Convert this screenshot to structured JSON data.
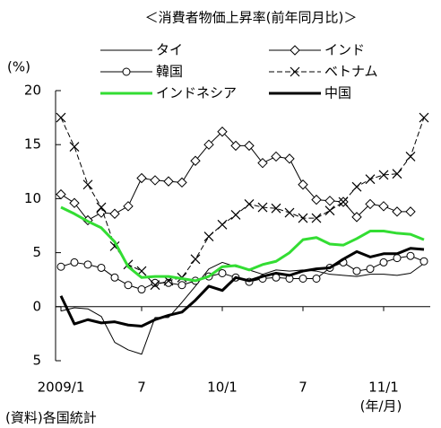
{
  "chart_data": {
    "type": "line",
    "title": "＜消費者物価上昇率(前年同月比)＞",
    "y_label": "(%)",
    "x_label": "(年/月)",
    "source": "(資料)各国統計",
    "categories": [
      "2009/1",
      null,
      null,
      null,
      null,
      null,
      "7",
      null,
      null,
      null,
      null,
      null,
      "10/1",
      null,
      null,
      null,
      null,
      null,
      "7",
      null,
      null,
      null,
      null,
      null,
      "11/1",
      null,
      null,
      null
    ],
    "ylim": [
      -5,
      20
    ],
    "yticks": [
      {
        "value": -5,
        "label": "5"
      },
      0,
      5,
      10,
      15,
      20
    ],
    "series": [
      {
        "name": "タイ",
        "color": "#000000",
        "width": 1,
        "marker": "none",
        "dash": false,
        "values": [
          -0.4,
          -0.1,
          -0.2,
          -0.9,
          -3.3,
          -4.0,
          -4.4,
          -1.0,
          -1.0,
          0.4,
          1.9,
          3.5,
          4.1,
          3.7,
          3.4,
          3.0,
          3.4,
          3.3,
          3.4,
          3.3,
          3.0,
          2.9,
          2.8,
          3.0,
          3.0,
          2.9,
          3.1,
          4.0
        ]
      },
      {
        "name": "インド",
        "color": "#000000",
        "width": 1,
        "marker": "diamond",
        "dash": false,
        "values": [
          10.4,
          9.6,
          8.0,
          8.7,
          8.6,
          9.3,
          11.9,
          11.7,
          11.6,
          11.5,
          13.5,
          15.0,
          16.2,
          14.9,
          14.9,
          13.3,
          13.9,
          13.7,
          11.3,
          9.9,
          9.8,
          9.7,
          8.3,
          9.5,
          9.3,
          8.8,
          8.8,
          null
        ]
      },
      {
        "name": "韓国",
        "color": "#000000",
        "width": 1,
        "marker": "circle",
        "dash": false,
        "values": [
          3.7,
          4.1,
          3.9,
          3.6,
          2.7,
          2.0,
          1.6,
          2.2,
          2.2,
          2.0,
          2.4,
          2.8,
          3.1,
          2.7,
          2.3,
          2.6,
          2.7,
          2.6,
          2.6,
          2.6,
          3.6,
          4.1,
          3.3,
          3.5,
          4.1,
          4.5,
          4.7,
          4.2
        ]
      },
      {
        "name": "ベトナム",
        "color": "#000000",
        "width": 1,
        "marker": "x",
        "dash": true,
        "values": [
          17.5,
          14.8,
          11.3,
          9.2,
          5.6,
          3.9,
          3.3,
          2.0,
          2.4,
          2.7,
          4.4,
          6.5,
          7.6,
          8.5,
          9.5,
          9.2,
          9.1,
          8.7,
          8.2,
          8.2,
          8.9,
          9.7,
          11.1,
          11.8,
          12.2,
          12.3,
          13.9,
          17.5
        ]
      },
      {
        "name": "インドネシア",
        "color": "#33dd33",
        "width": 3,
        "marker": "none",
        "dash": false,
        "values": [
          9.2,
          8.6,
          7.9,
          7.3,
          6.0,
          3.7,
          2.7,
          2.8,
          2.8,
          2.6,
          2.4,
          2.8,
          3.7,
          3.8,
          3.4,
          3.9,
          4.2,
          5.0,
          6.2,
          6.4,
          5.8,
          5.7,
          6.3,
          7.0,
          7.0,
          6.8,
          6.7,
          6.2
        ]
      },
      {
        "name": "中国",
        "color": "#000000",
        "width": 3,
        "marker": "none",
        "dash": false,
        "values": [
          1.0,
          -1.6,
          -1.2,
          -1.5,
          -1.4,
          -1.7,
          -1.8,
          -1.2,
          -0.8,
          -0.5,
          0.6,
          1.9,
          1.5,
          2.7,
          2.4,
          2.8,
          3.1,
          2.9,
          3.3,
          3.5,
          3.6,
          4.4,
          5.1,
          4.6,
          4.9,
          4.9,
          5.4,
          5.3
        ]
      }
    ]
  }
}
